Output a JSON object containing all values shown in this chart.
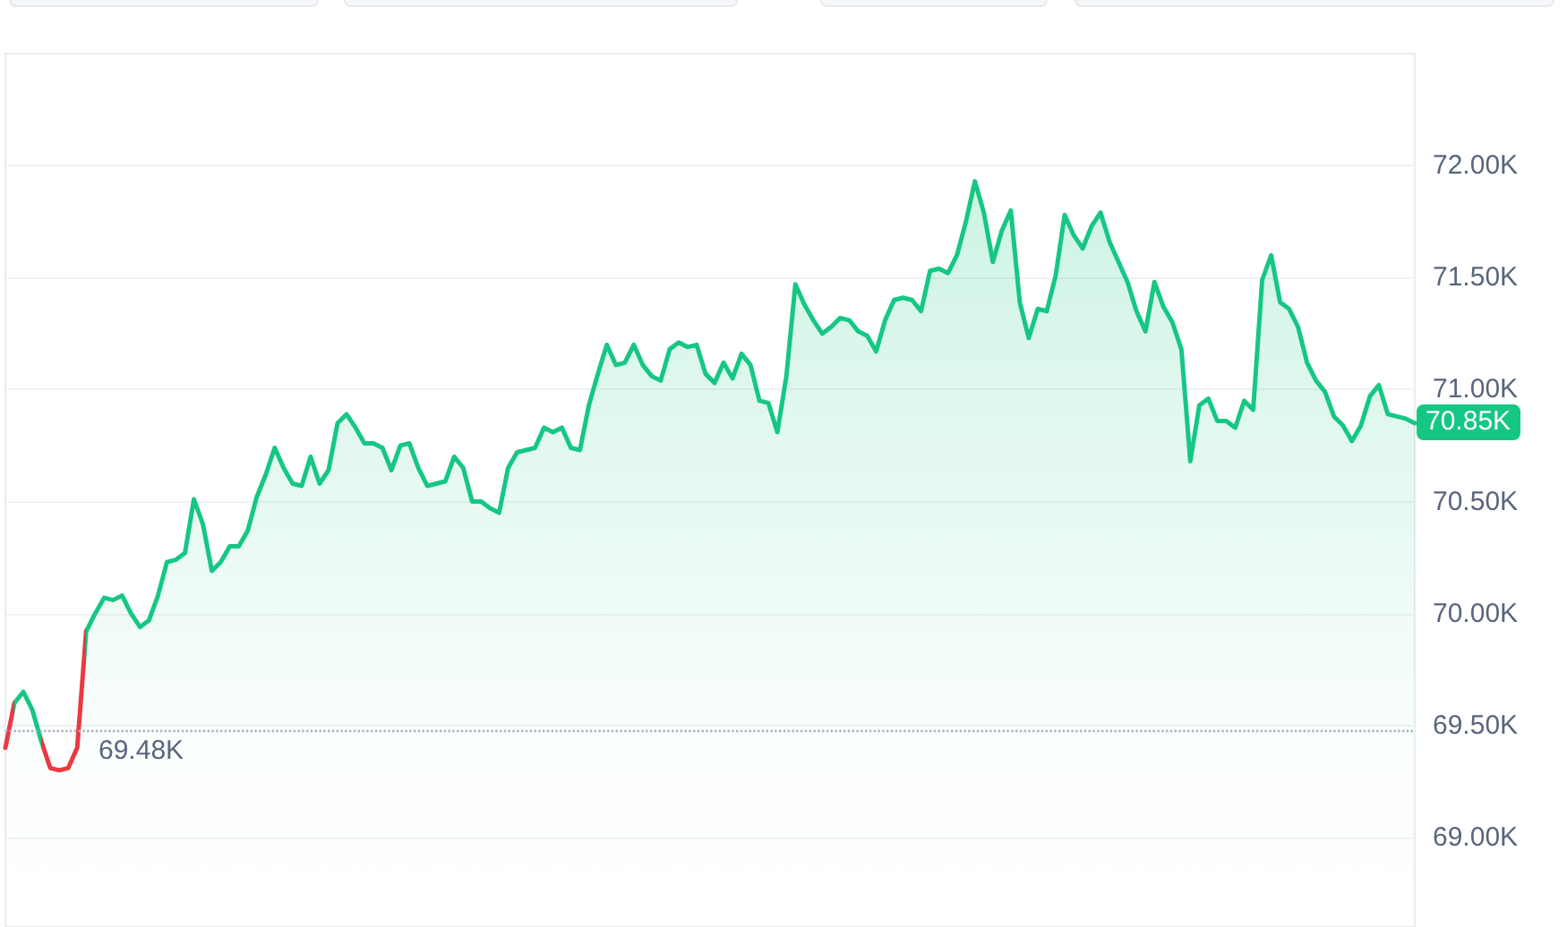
{
  "chart_data": {
    "type": "area",
    "categories": [
      null,
      null,
      null,
      null,
      null,
      null,
      null,
      null,
      null,
      null,
      null,
      null,
      null,
      null,
      null,
      null,
      null,
      null,
      null,
      null,
      null,
      null,
      null,
      null,
      null,
      null,
      null,
      null,
      null,
      null,
      null,
      null,
      null,
      null,
      null,
      null,
      null,
      null,
      null,
      null,
      null,
      null,
      null,
      null,
      null,
      null,
      null,
      null,
      null,
      null,
      null,
      null,
      null,
      null,
      null,
      null,
      null,
      null,
      null,
      null,
      null,
      null,
      null,
      null,
      null,
      null,
      null,
      null,
      null,
      null,
      null,
      null,
      null,
      null,
      null,
      null,
      null,
      null,
      null,
      null,
      null,
      null,
      null,
      null,
      null,
      null,
      null,
      null,
      null,
      null,
      null,
      null,
      null,
      null,
      null,
      null,
      null,
      null,
      null,
      null,
      null,
      null,
      null,
      null,
      null,
      null,
      null,
      null,
      null,
      null,
      null,
      null,
      null,
      null,
      null,
      null,
      null,
      null,
      null,
      null,
      null,
      null,
      null,
      null,
      null,
      null,
      null,
      null,
      null,
      null,
      null,
      null,
      null,
      null,
      null,
      null,
      null,
      null,
      null,
      null,
      null,
      null,
      null,
      null,
      null,
      null,
      null,
      null,
      null,
      null,
      null,
      null,
      null,
      null,
      null,
      null,
      null,
      null
    ],
    "values": [
      69400,
      69600,
      69650,
      69570,
      69430,
      69310,
      69300,
      69310,
      69400,
      69920,
      70000,
      70070,
      70060,
      70080,
      70000,
      69940,
      69970,
      70080,
      70230,
      70240,
      70270,
      70510,
      70400,
      70190,
      70230,
      70300,
      70300,
      70370,
      70520,
      70620,
      70740,
      70650,
      70580,
      70570,
      70700,
      70580,
      70640,
      70850,
      70890,
      70830,
      70760,
      70760,
      70740,
      70640,
      70750,
      70760,
      70650,
      70570,
      70580,
      70590,
      70700,
      70650,
      70500,
      70500,
      70470,
      70450,
      70650,
      70720,
      70730,
      70740,
      70830,
      70810,
      70830,
      70740,
      70730,
      70930,
      71070,
      71200,
      71110,
      71120,
      71200,
      71110,
      71060,
      71040,
      71180,
      71210,
      71190,
      71200,
      71070,
      71030,
      71120,
      71050,
      71160,
      71110,
      70950,
      70940,
      70810,
      71060,
      71470,
      71380,
      71310,
      71250,
      71280,
      71320,
      71310,
      71260,
      71240,
      71170,
      71310,
      71400,
      71410,
      71400,
      71350,
      71530,
      71540,
      71520,
      71600,
      71750,
      71930,
      71790,
      71570,
      71710,
      71800,
      71390,
      71230,
      71360,
      71350,
      71510,
      71780,
      71690,
      71630,
      71730,
      71790,
      71660,
      71570,
      71480,
      71350,
      71260,
      71480,
      71370,
      71300,
      71180,
      70680,
      70930,
      70960,
      70860,
      70860,
      70830,
      70950,
      70910,
      71490,
      71600,
      71390,
      71360,
      71280,
      71120,
      71040,
      70990,
      70880,
      70840,
      70770,
      70840,
      70970,
      71020,
      70890,
      70880,
      70870,
      70850
    ],
    "value_labels": [
      null,
      null,
      null,
      null,
      null,
      null,
      null,
      null,
      null,
      null,
      null,
      null,
      null,
      null,
      null,
      null,
      null,
      null,
      null,
      null,
      null,
      null,
      null,
      null,
      null,
      null,
      null,
      null,
      null,
      null,
      null,
      null,
      null,
      null,
      null,
      null,
      null,
      null,
      null,
      null,
      null,
      null,
      null,
      null,
      null,
      null,
      null,
      null,
      null,
      null,
      null,
      null,
      null,
      null,
      null,
      null,
      null,
      null,
      null,
      null,
      null,
      null,
      null,
      null,
      null,
      null,
      null,
      null,
      null,
      null,
      null,
      null,
      null,
      null,
      null,
      null,
      null,
      null,
      null,
      null,
      null,
      null,
      null,
      null,
      null,
      null,
      null,
      null,
      null,
      null,
      null,
      null,
      null,
      null,
      null,
      null,
      null,
      null,
      null,
      null,
      null,
      null,
      null,
      null,
      null,
      null,
      null,
      null,
      null,
      null,
      null,
      null,
      null,
      null,
      null,
      null,
      null,
      null,
      null,
      null,
      null,
      null,
      null,
      null,
      null,
      null,
      null,
      null,
      null,
      null,
      null,
      null,
      null,
      null,
      null,
      null,
      null,
      null,
      null,
      null,
      null,
      null,
      null,
      null,
      null,
      null,
      null,
      null,
      null,
      null,
      null,
      null,
      null,
      null,
      null,
      null,
      null,
      "70.85K"
    ],
    "colors": [
      "#ea3943",
      "#16c784",
      "#16c784",
      "#16c784",
      "#ea3943",
      "#ea3943",
      "#ea3943",
      "#ea3943",
      "#ea3943",
      "#16c784",
      "#16c784",
      "#16c784",
      "#16c784",
      "#16c784",
      "#16c784",
      "#16c784",
      "#16c784",
      "#16c784",
      "#16c784",
      "#16c784",
      "#16c784",
      "#16c784",
      "#16c784",
      "#16c784",
      "#16c784",
      "#16c784",
      "#16c784",
      "#16c784",
      "#16c784",
      "#16c784",
      "#16c784",
      "#16c784",
      "#16c784",
      "#16c784",
      "#16c784",
      "#16c784",
      "#16c784",
      "#16c784",
      "#16c784",
      "#16c784",
      "#16c784",
      "#16c784",
      "#16c784",
      "#16c784",
      "#16c784",
      "#16c784",
      "#16c784",
      "#16c784",
      "#16c784",
      "#16c784",
      "#16c784",
      "#16c784",
      "#16c784",
      "#16c784",
      "#16c784",
      "#16c784",
      "#16c784",
      "#16c784",
      "#16c784",
      "#16c784",
      "#16c784",
      "#16c784",
      "#16c784",
      "#16c784",
      "#16c784",
      "#16c784",
      "#16c784",
      "#16c784",
      "#16c784",
      "#16c784",
      "#16c784",
      "#16c784",
      "#16c784",
      "#16c784",
      "#16c784",
      "#16c784",
      "#16c784",
      "#16c784",
      "#16c784",
      "#16c784",
      "#16c784",
      "#16c784",
      "#16c784",
      "#16c784",
      "#16c784",
      "#16c784",
      "#16c784",
      "#16c784",
      "#16c784",
      "#16c784",
      "#16c784",
      "#16c784",
      "#16c784",
      "#16c784",
      "#16c784",
      "#16c784",
      "#16c784",
      "#16c784",
      "#16c784",
      "#16c784",
      "#16c784",
      "#16c784",
      "#16c784",
      "#16c784",
      "#16c784",
      "#16c784",
      "#16c784",
      "#16c784",
      "#16c784",
      "#16c784",
      "#16c784",
      "#16c784",
      "#16c784",
      "#16c784",
      "#16c784",
      "#16c784",
      "#16c784",
      "#16c784",
      "#16c784",
      "#16c784",
      "#16c784",
      "#16c784",
      "#16c784",
      "#16c784",
      "#16c784",
      "#16c784",
      "#16c784",
      "#16c784",
      "#16c784",
      "#16c784",
      "#16c784",
      "#16c784",
      "#16c784",
      "#16c784",
      "#16c784",
      "#16c784",
      "#16c784",
      "#16c784",
      "#16c784",
      "#16c784",
      "#16c784",
      "#16c784",
      "#16c784",
      "#16c784",
      "#16c784",
      "#16c784",
      "#16c784",
      "#16c784",
      "#16c784",
      "#16c784",
      "#16c784",
      "#16c784",
      "#16c784",
      "#16c784",
      "#16c784",
      "#16c784",
      "#16c784",
      "#16c784"
    ],
    "ylim": [
      68600,
      72500
    ],
    "yticks": [
      {
        "value": 69000,
        "label": "69.00K"
      },
      {
        "value": 69500,
        "label": "69.50K"
      },
      {
        "value": 70000,
        "label": "70.00K"
      },
      {
        "value": 70500,
        "label": "70.50K"
      },
      {
        "value": 71000,
        "label": "71.00K"
      },
      {
        "value": 71500,
        "label": "71.50K"
      },
      {
        "value": 72000,
        "label": "72.00K"
      }
    ],
    "grid": "y",
    "tick_labels": "y",
    "ref_lines": [
      {
        "axis": "y",
        "value": 69480,
        "label": "69.48K",
        "line_style": "dotted",
        "color": "#a6b0c3"
      }
    ]
  }
}
